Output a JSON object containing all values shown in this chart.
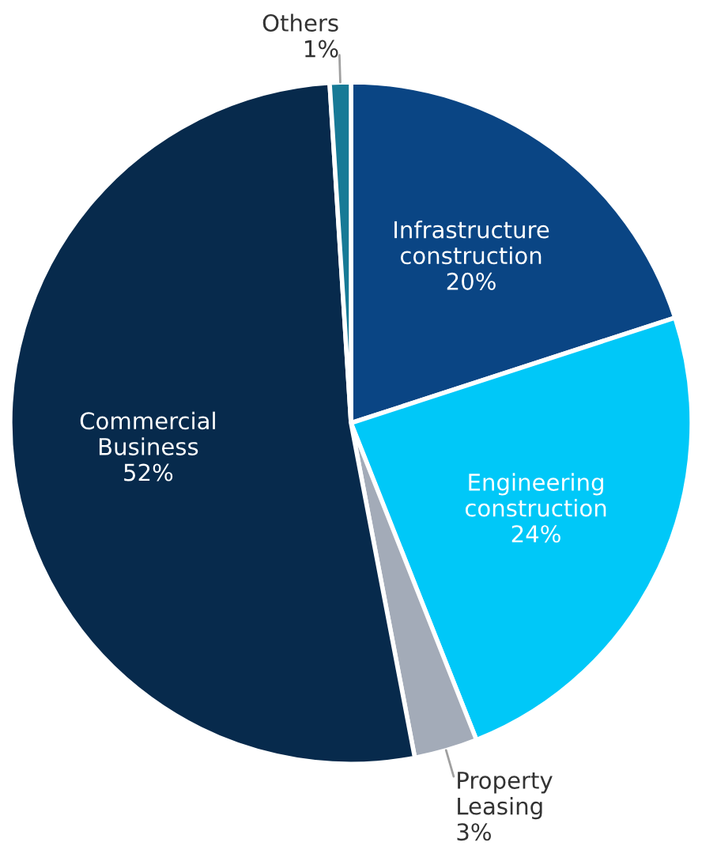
{
  "chart_data": {
    "type": "pie",
    "categories": [
      "Infrastructure construction",
      "Engineering construction",
      "Property Leasing",
      "Commercial Business",
      "Others"
    ],
    "values": [
      20,
      24,
      3,
      52,
      1
    ],
    "value_labels": [
      "20%",
      "24%",
      "3%",
      "52%",
      "1%"
    ],
    "colors": [
      "#0a4584",
      "#00c8f8",
      "#a3abb8",
      "#072a4c",
      "#177a96"
    ]
  }
}
